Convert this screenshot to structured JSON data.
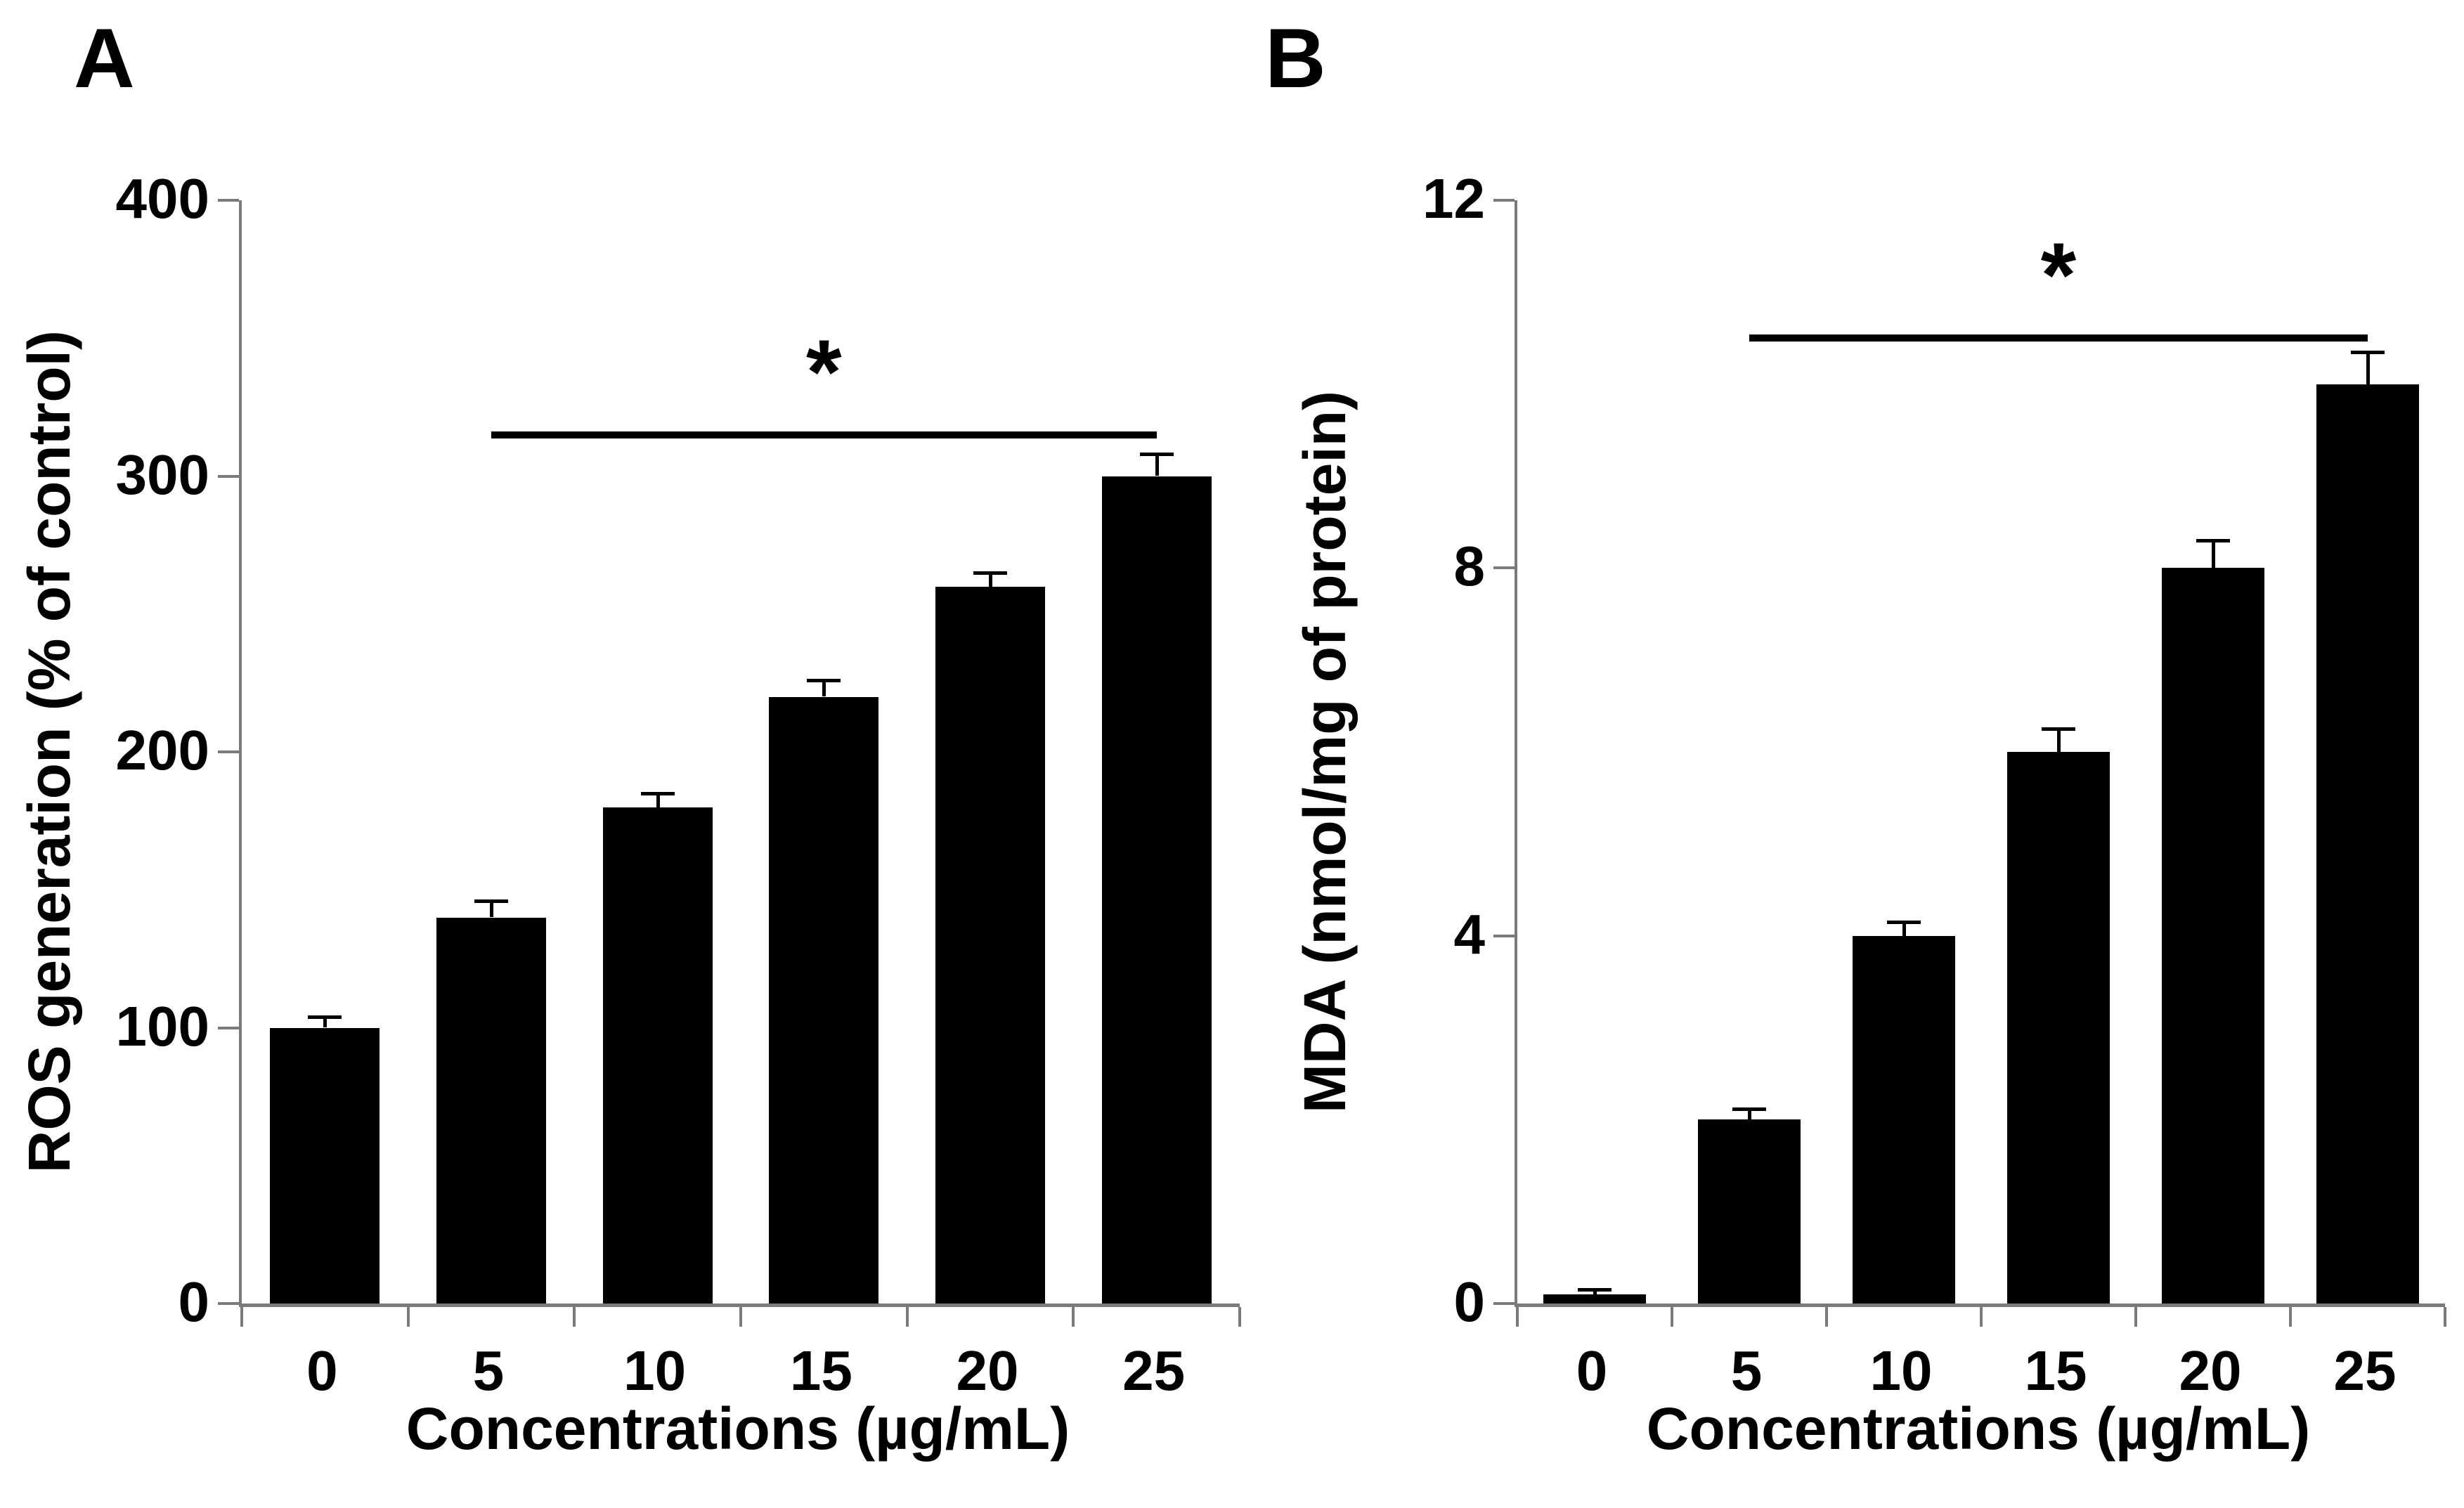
{
  "figure": {
    "background": "#ffffff",
    "bar_color": "#000000",
    "axis_color": "#7a7a7a",
    "panels": [
      {
        "label": "A"
      },
      {
        "label": "B"
      }
    ]
  },
  "chart_data": [
    {
      "panel": "A",
      "type": "bar",
      "categories": [
        "0",
        "5",
        "10",
        "15",
        "20",
        "25"
      ],
      "values": [
        100,
        140,
        180,
        220,
        260,
        300
      ],
      "errors": [
        4,
        6,
        5,
        6,
        5,
        8
      ],
      "title": "",
      "xlabel": "Concentrations (µg/mL)",
      "ylabel": "ROS generation (% of control)",
      "ylim": [
        0,
        400
      ],
      "yticks": [
        0,
        100,
        200,
        300,
        400
      ],
      "grid": false,
      "legend": "none",
      "significance": {
        "label": "*",
        "from_category": "5",
        "to_category": "25",
        "y_value": 315
      }
    },
    {
      "panel": "B",
      "type": "bar",
      "categories": [
        "0",
        "5",
        "10",
        "15",
        "20",
        "25"
      ],
      "values": [
        0.1,
        2,
        4,
        6,
        8,
        10
      ],
      "errors": [
        0.05,
        0.12,
        0.15,
        0.25,
        0.3,
        0.35
      ],
      "title": "",
      "xlabel": "Concentrations (µg/mL)",
      "ylabel": "MDA (nmol/mg of protein)",
      "ylim": [
        0,
        12
      ],
      "yticks": [
        0,
        4,
        8,
        12
      ],
      "grid": false,
      "legend": "none",
      "significance": {
        "label": "*",
        "from_category": "5",
        "to_category": "25",
        "y_value": 10.5
      }
    }
  ]
}
